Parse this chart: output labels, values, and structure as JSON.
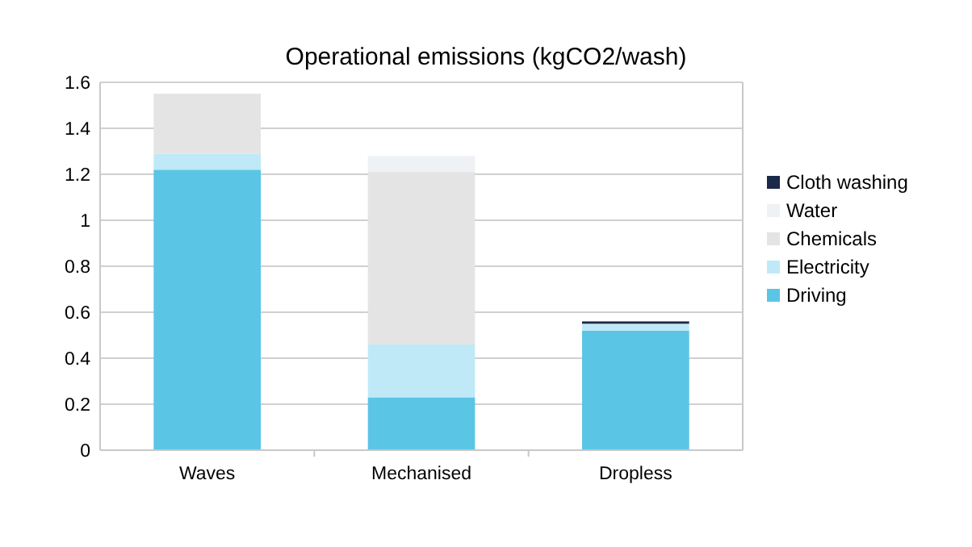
{
  "chart_data": {
    "type": "bar",
    "stacked": true,
    "title": "Operational emissions (kgCO2/wash)",
    "categories": [
      "Waves",
      "Mechanised",
      "Dropless"
    ],
    "series": [
      {
        "name": "Driving",
        "color": "#5bc5e6",
        "values": [
          1.22,
          0.23,
          0.52
        ]
      },
      {
        "name": "Electricity",
        "color": "#bfe9f7",
        "values": [
          0.07,
          0.23,
          0.03
        ]
      },
      {
        "name": "Chemicals",
        "color": "#e4e4e4",
        "values": [
          0.26,
          0.75,
          null
        ]
      },
      {
        "name": "Water",
        "color": "#eef2f5",
        "values": [
          null,
          0.07,
          null
        ]
      },
      {
        "name": "Cloth washing",
        "color": "#1b2a47",
        "values": [
          0,
          0,
          0.01
        ]
      }
    ],
    "ylim": [
      0,
      1.6
    ],
    "yticks": [
      0,
      {
        "value": 0.2,
        "label": "0.2"
      },
      {
        "value": 0.4,
        "label": "0.4"
      },
      {
        "value": 0.6,
        "label": "0.6"
      },
      {
        "value": 0.8,
        "label": "0.8"
      },
      1,
      {
        "value": 1.2,
        "label": "1.2"
      },
      {
        "value": 1.4,
        "label": "1.4"
      },
      {
        "value": 1.6,
        "label": "1.6"
      }
    ],
    "grid": "y",
    "legend": "right"
  }
}
